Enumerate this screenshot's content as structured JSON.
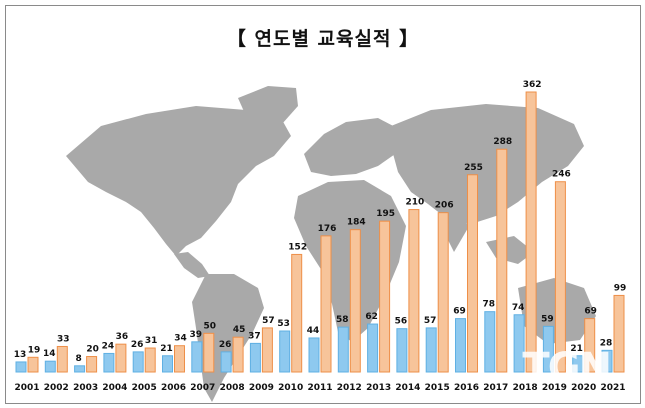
{
  "title": "【 연도별 교육실적 】",
  "watermark": "TGN",
  "colors": {
    "series_a": "#8ec9ef",
    "series_a_edge": "#5fb0e3",
    "series_b": "#f7c49a",
    "series_b_edge": "#ee8f48",
    "map": "#a9a9a9"
  },
  "chart_data": {
    "type": "bar",
    "title": "【 연도별 교육실적 】",
    "xlabel": "",
    "ylabel": "",
    "ylim": [
      0,
      380
    ],
    "grid": false,
    "legend": "none",
    "categories": [
      "2001",
      "2002",
      "2003",
      "2004",
      "2005",
      "2006",
      "2007",
      "2008",
      "2009",
      "2010",
      "2011",
      "2012",
      "2013",
      "2014",
      "2015",
      "2016",
      "2017",
      "2018",
      "2019",
      "2020",
      "2021"
    ],
    "series": [
      {
        "values": [
          13,
          14,
          8,
          24,
          26,
          21,
          39,
          26,
          37,
          53,
          44,
          58,
          62,
          56,
          57,
          69,
          78,
          74,
          59,
          21,
          28
        ]
      },
      {
        "values": [
          19,
          33,
          20,
          36,
          31,
          34,
          50,
          45,
          57,
          152,
          176,
          184,
          195,
          210,
          206,
          255,
          288,
          362,
          246,
          69,
          99
        ]
      }
    ]
  }
}
